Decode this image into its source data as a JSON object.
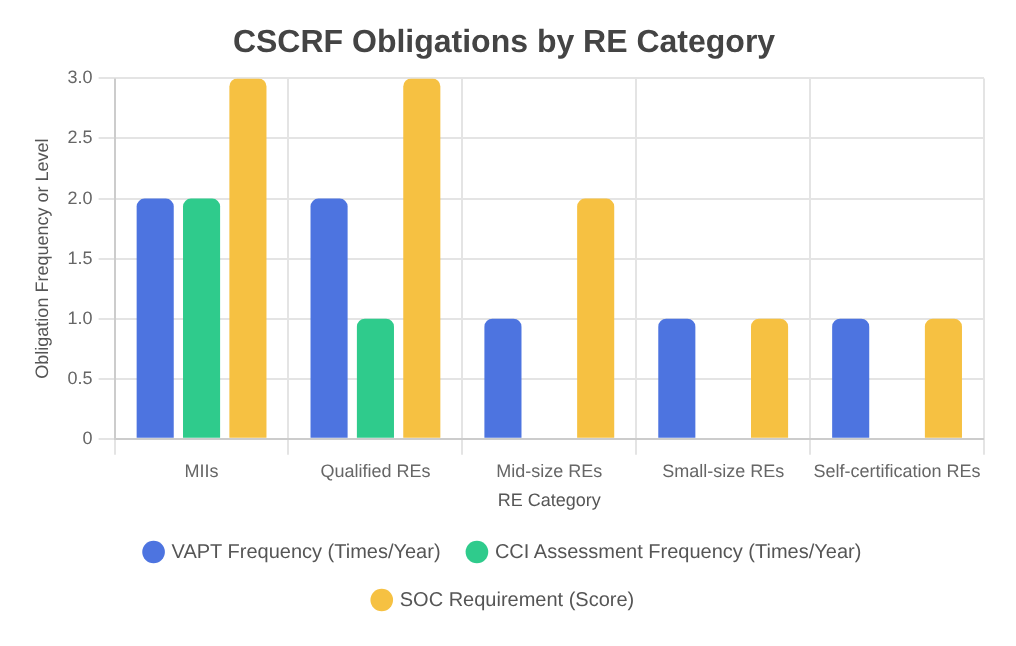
{
  "chart_data": {
    "type": "bar",
    "title": "CSCRF Obligations by RE Category",
    "xlabel": "RE Category",
    "ylabel": "Obligation Frequency or Level",
    "categories": [
      "MIIs",
      "Qualified REs",
      "Mid-size REs",
      "Small-size REs",
      "Self-certification REs"
    ],
    "series": [
      {
        "name": "VAPT Frequency (Times/Year)",
        "color": "#4d74e0",
        "values": [
          2,
          2,
          1,
          1,
          1
        ]
      },
      {
        "name": "CCI Assessment Frequency (Times/Year)",
        "color": "#2fcb8c",
        "values": [
          2,
          1,
          0,
          0,
          0
        ]
      },
      {
        "name": "SOC Requirement (Score)",
        "color": "#f6c142",
        "values": [
          3,
          3,
          2,
          1,
          1
        ]
      }
    ],
    "ylim": [
      0,
      3
    ],
    "yticks": [
      0,
      {
        "value": 0.5,
        "label": "0.5"
      },
      {
        "value": 1,
        "label": "1.0"
      },
      {
        "value": 1.5,
        "label": "1.5"
      },
      {
        "value": 2,
        "label": "2.0"
      },
      {
        "value": 2.5,
        "label": "2.5"
      },
      {
        "value": 3,
        "label": "3.0"
      }
    ],
    "grid": true,
    "legend": "bottom"
  }
}
